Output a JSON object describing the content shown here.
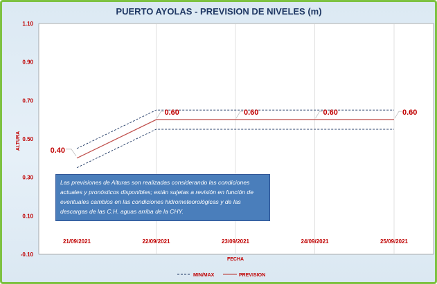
{
  "chart_data": {
    "type": "line",
    "title": "PUERTO AYOLAS - PREVISION DE NIVELES (m)",
    "xlabel": "FECHA",
    "ylabel": "ALTURA",
    "ylim": [
      -0.1,
      1.1
    ],
    "yticks": [
      "1.10",
      "0.90",
      "0.70",
      "0.50",
      "0.30",
      "0.10",
      "-0.10"
    ],
    "categories": [
      "21/09/2021",
      "22/09/2021",
      "23/09/2021",
      "24/09/2021",
      "25/09/2021"
    ],
    "series": [
      {
        "name": "PREVISION",
        "values": [
          0.4,
          0.6,
          0.6,
          0.6,
          0.6
        ],
        "color": "#c0504d",
        "style": "solid"
      },
      {
        "name": "MIN/MAX",
        "values": [
          0.45,
          0.65,
          0.65,
          0.65,
          0.65
        ],
        "color": "#1f3864",
        "style": "dashed"
      },
      {
        "name": "",
        "values": [
          0.35,
          0.55,
          0.55,
          0.55,
          0.55
        ],
        "color": "#1f3864",
        "style": "dashed"
      }
    ],
    "data_labels": [
      "0.40",
      "0.60",
      "0.60",
      "0.60",
      "0.60"
    ],
    "legend": {
      "placement": "bottom",
      "items": [
        "MIN/MAX",
        "PREVISION"
      ]
    },
    "grid": "vertical",
    "annotation": "Las previsiones de Alturas son realizadas considerando las condiciones actuales y pronósticos disponibles;  están sujetas a revisión en función de eventuales cambios en las condiciones hidrometeorológicas y de las descargas de las C.H. aguas arriba de la CHY."
  }
}
